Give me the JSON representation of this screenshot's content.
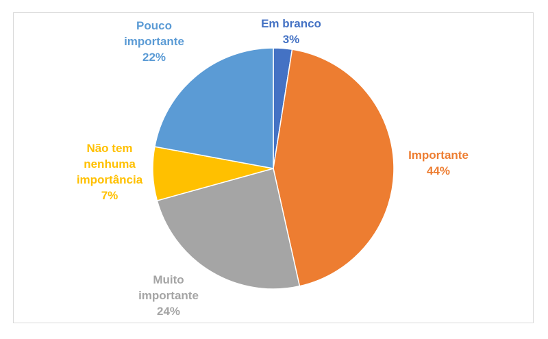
{
  "chart_data": {
    "type": "pie",
    "slices": [
      {
        "label_lines": [
          "Em branco"
        ],
        "pct_label": "3%",
        "value": 2.5,
        "color": "#4472c4"
      },
      {
        "label_lines": [
          "Importante"
        ],
        "pct_label": "44%",
        "value": 44,
        "color": "#ed7d31"
      },
      {
        "label_lines": [
          "Muito",
          "importante"
        ],
        "pct_label": "24%",
        "value": 24.2,
        "color": "#a5a5a5"
      },
      {
        "label_lines": [
          "Não tem",
          "nenhuma",
          "importância"
        ],
        "pct_label": "7%",
        "value": 7.2,
        "color": "#ffc000"
      },
      {
        "label_lines": [
          "Pouco",
          "importante"
        ],
        "pct_label": "22%",
        "value": 22.1,
        "color": "#5b9bd5"
      }
    ]
  }
}
